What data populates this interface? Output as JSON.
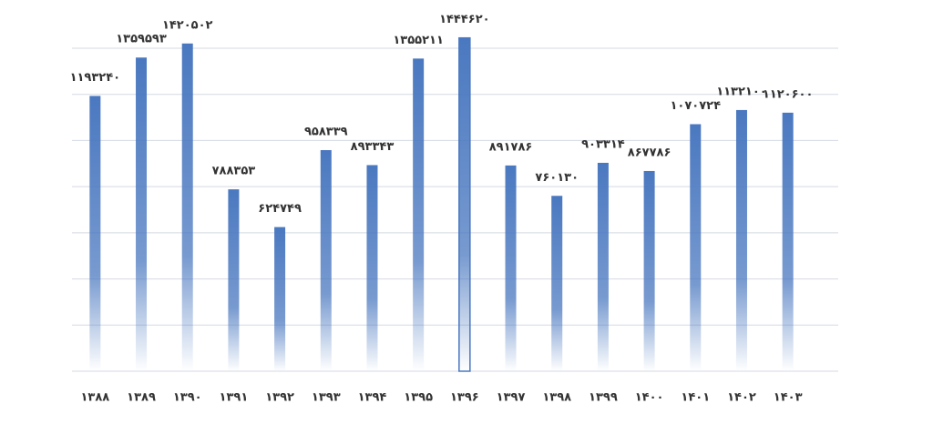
{
  "chart_data": {
    "type": "bar",
    "categories": [
      "۱۳۸۸",
      "۱۳۸۹",
      "۱۳۹۰",
      "۱۳۹۱",
      "۱۳۹۲",
      "۱۳۹۳",
      "۱۳۹۴",
      "۱۳۹۵",
      "۱۳۹۶",
      "۱۳۹۷",
      "۱۳۹۸",
      "۱۳۹۹",
      "۱۴۰۰",
      "۱۴۰۱",
      "۱۴۰۲",
      "۱۴۰۳"
    ],
    "values": [
      1193240,
      1359593,
      1420502,
      788353,
      624749,
      958339,
      893343,
      1355211,
      1444620,
      891786,
      760130,
      903314,
      867786,
      1070724,
      1132100,
      1120600
    ],
    "value_labels": [
      "۱۱۹۳۲۴۰",
      "۱۳۵۹۵۹۳",
      "۱۴۲۰۵۰۲",
      "۷۸۸۳۵۳",
      "۶۲۴۷۴۹",
      "۹۵۸۳۳۹",
      "۸۹۳۳۴۳",
      "۱۳۵۵۲۱۱",
      "۱۴۴۴۶۲۰",
      "۸۹۱۷۸۶",
      "۷۶۰۱۳۰",
      "۹۰۳۳۱۴",
      "۸۶۷۷۸۶",
      "۱۰۷۰۷۲۴",
      "۱۱۳۲۱۰۰",
      "۱۱۲۰۶۰۰"
    ],
    "color": "#4a78c0",
    "highlight": "۱۳۹۶",
    "ylim": [
      0,
      1400000
    ],
    "yticks": [
      0,
      200000,
      400000,
      600000,
      800000,
      1000000,
      1200000,
      1400000
    ],
    "grid": true
  }
}
